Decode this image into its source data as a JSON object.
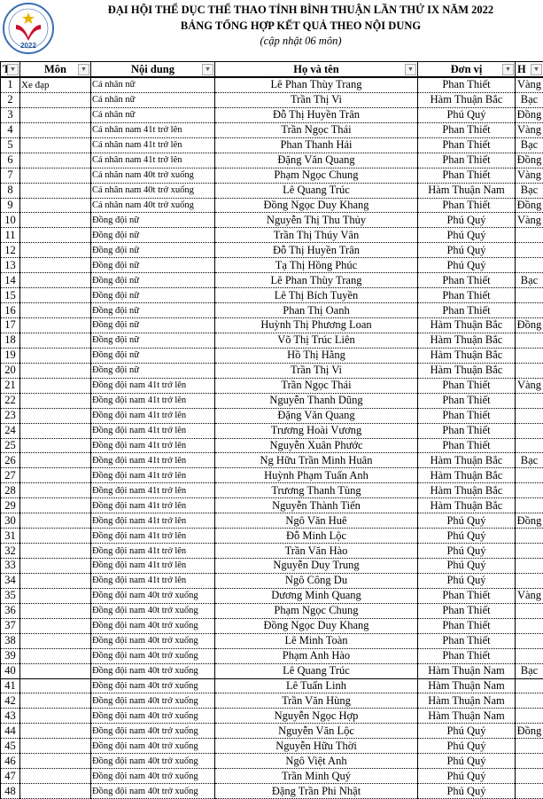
{
  "header": {
    "title1": "ĐẠI HỘI THỂ DỤC THỂ THAO TỈNH BÌNH THUẬN LẦN THỨ IX NĂM 2022",
    "title2": "BẢNG TỔNG HỢP KẾT QUẢ THEO NỘI DUNG",
    "subtitle": "(cập nhật 06 môn)",
    "logo_year": "2022"
  },
  "columns": [
    "T",
    "Môn",
    "Nội dung",
    "Họ và tên",
    "Đơn vị",
    "H"
  ],
  "rows": [
    [
      "1",
      "Xe đạp",
      "Cá nhân nữ",
      "Lê Phan Thùy Trang",
      "Phan Thiết",
      "Vàng"
    ],
    [
      "2",
      "",
      "Cá nhân nữ",
      "Trần Thị Vi",
      "Hàm Thuận Bắc",
      "Bạc"
    ],
    [
      "3",
      "",
      "Cá nhân nữ",
      "Đỗ Thị Huyền Trân",
      "Phú Quý",
      "Đồng"
    ],
    [
      "4",
      "",
      "Cá nhân nam 41t trở lên",
      "Trần Ngọc Thái",
      "Phan Thiết",
      "Vàng"
    ],
    [
      "5",
      "",
      "Cá nhân nam 41t trở lên",
      "Phan Thanh Hải",
      "Phan Thiết",
      "Bạc"
    ],
    [
      "6",
      "",
      "Cá nhân nam 41t trở lên",
      "Đặng Văn Quang",
      "Phan Thiết",
      "Đồng"
    ],
    [
      "7",
      "",
      "Cá nhân nam 40t trở xuống",
      "Phạm Ngọc Chung",
      "Phan Thiết",
      "Vàng"
    ],
    [
      "8",
      "",
      "Cá nhân nam 40t trở xuống",
      "Lê Quang Trúc",
      "Hàm Thuận Nam",
      "Bạc"
    ],
    [
      "9",
      "",
      "Cá nhân nam 40t trở xuống",
      "Đồng Ngọc Duy Khang",
      "Phan Thiết",
      "Đồng"
    ],
    [
      "10",
      "",
      "Đồng đội nữ",
      "Nguyễn Thị Thu Thủy",
      "Phú Quý",
      "Vàng"
    ],
    [
      "11",
      "",
      "Đồng đội nữ",
      "Trần Thị Thúy Vân",
      "Phú Quý",
      ""
    ],
    [
      "12",
      "",
      "Đồng đội nữ",
      "Đỗ Thị Huyền Trân",
      "Phú Quý",
      ""
    ],
    [
      "13",
      "",
      "Đồng đội nữ",
      "Tạ Thị Hồng Phúc",
      "Phú Quý",
      ""
    ],
    [
      "14",
      "",
      "Đồng đội nữ",
      "Lê Phan Thùy Trang",
      "Phan Thiết",
      "Bạc"
    ],
    [
      "15",
      "",
      "Đồng đội nữ",
      "Lê Thị Bích Tuyền",
      "Phan Thiết",
      ""
    ],
    [
      "16",
      "",
      "Đồng đội nữ",
      "Phan Thị Oanh",
      "Phan Thiết",
      ""
    ],
    [
      "17",
      "",
      "Đồng đội nữ",
      "Huỳnh Thị Phương Loan",
      "Hàm Thuận Bắc",
      "Đồng"
    ],
    [
      "18",
      "",
      "Đồng đội nữ",
      "Võ Thị Trúc Liên",
      "Hàm Thuận Bắc",
      ""
    ],
    [
      "19",
      "",
      "Đồng đội nữ",
      "Hồ Thị Hằng",
      "Hàm Thuận Bắc",
      ""
    ],
    [
      "20",
      "",
      "Đồng đội nữ",
      "Trần Thị Vi",
      "Hàm Thuận Bắc",
      ""
    ],
    [
      "21",
      "",
      "Đồng đội nam 41t trở lên",
      "Trần Ngọc Thái",
      "Phan Thiết",
      "Vàng"
    ],
    [
      "22",
      "",
      "Đồng đội nam 41t trở lên",
      "Nguyễn Thanh Dũng",
      "Phan Thiết",
      ""
    ],
    [
      "23",
      "",
      "Đồng đội nam 41t trở lên",
      "Đặng Văn Quang",
      "Phan Thiết",
      ""
    ],
    [
      "24",
      "",
      "Đồng đội nam 41t trở lên",
      "Trương Hoài Vương",
      "Phan Thiết",
      ""
    ],
    [
      "25",
      "",
      "Đồng đội nam 41t trở lên",
      "Nguyễn Xuân Phước",
      "Phan Thiết",
      ""
    ],
    [
      "26",
      "",
      "Đồng đội nam 41t trở lên",
      "Ng Hữu Trần Minh Huân",
      "Hàm Thuận Bắc",
      "Bạc"
    ],
    [
      "27",
      "",
      "Đồng đội nam 41t trở lên",
      "Huỳnh Phạm Tuấn Anh",
      "Hàm Thuận Bắc",
      ""
    ],
    [
      "28",
      "",
      "Đồng đội nam 41t trở lên",
      "Trương Thanh Tùng",
      "Hàm Thuận Bắc",
      ""
    ],
    [
      "29",
      "",
      "Đồng đội nam 41t trở lên",
      "Nguyễn Thành Tiến",
      "Hàm Thuận Bắc",
      ""
    ],
    [
      "30",
      "",
      "Đồng đội nam 41t trở lên",
      "Ngô Văn Huê",
      "Phú Quý",
      "Đồng"
    ],
    [
      "31",
      "",
      "Đồng đội nam 41t trở lên",
      "Đỗ Minh Lộc",
      "Phú Quý",
      ""
    ],
    [
      "32",
      "",
      "Đồng đội nam 41t trở lên",
      "Trần Văn Hào",
      "Phú Quý",
      ""
    ],
    [
      "33",
      "",
      "Đồng đội nam 41t trở lên",
      "Nguyễn Duy Trung",
      "Phú Quý",
      ""
    ],
    [
      "34",
      "",
      "Đồng đội nam 41t trở lên",
      "Ngô Công Du",
      "Phú Quý",
      ""
    ],
    [
      "35",
      "",
      "Đồng đội nam 40t trở xuống",
      "Dương Minh Quang",
      "Phan Thiết",
      "Vàng"
    ],
    [
      "36",
      "",
      "Đồng đội nam 40t trở xuống",
      "Phạm Ngọc Chung",
      "Phan Thiết",
      ""
    ],
    [
      "37",
      "",
      "Đồng đội nam 40t trở xuống",
      "Đồng Ngọc Duy Khang",
      "Phan Thiết",
      ""
    ],
    [
      "38",
      "",
      "Đồng đội nam 40t trở xuống",
      "Lê Minh Toàn",
      "Phan Thiết",
      ""
    ],
    [
      "39",
      "",
      "Đồng đội nam 40t trở xuống",
      "Phạm Anh Hào",
      "Phan Thiết",
      ""
    ],
    [
      "40",
      "",
      "Đồng đội nam 40t trở xuống",
      "Lê Quang Trúc",
      "Hàm Thuận Nam",
      "Bạc"
    ],
    [
      "41",
      "",
      "Đồng đội nam 40t trở xuống",
      "Lê Tuấn Linh",
      "Hàm Thuận Nam",
      ""
    ],
    [
      "42",
      "",
      "Đồng đội nam 40t trở xuống",
      "Trần Văn Hùng",
      "Hàm Thuận Nam",
      ""
    ],
    [
      "43",
      "",
      "Đồng đội nam 40t trở xuống",
      "Nguyễn Ngọc Hợp",
      "Hàm Thuận Nam",
      ""
    ],
    [
      "44",
      "",
      "Đồng đội nam 40t trở xuống",
      "Nguyễn Văn Lộc",
      "Phú Quý",
      "Đồng"
    ],
    [
      "45",
      "",
      "Đồng đội nam 40t trở xuống",
      "Nguyễn Hữu Thời",
      "Phú Quý",
      ""
    ],
    [
      "46",
      "",
      "Đồng đội nam 40t trở xuống",
      "Ngô Việt Anh",
      "Phú Quý",
      ""
    ],
    [
      "47",
      "",
      "Đồng đội nam 40t trở xuống",
      "Trần Minh Quý",
      "Phú Quý",
      ""
    ],
    [
      "48",
      "",
      "Đồng đội nam 40t trở xuống",
      "Đặng Trần Phi Nhật",
      "Phú Quý",
      ""
    ]
  ]
}
